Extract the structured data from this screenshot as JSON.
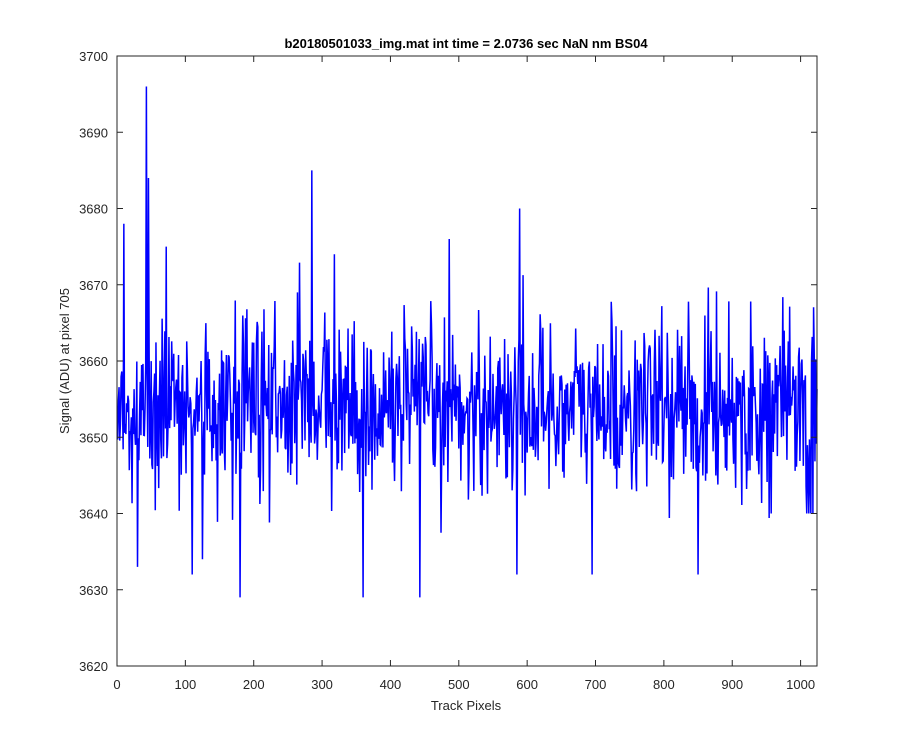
{
  "chart_data": {
    "type": "line",
    "title": "b20180501033_img.mat int time = 2.0736 sec  NaN nm BS04",
    "xlabel": "Track Pixels",
    "ylabel": "Signal (ADU) at pixel 705",
    "xlim": [
      0,
      1024
    ],
    "ylim": [
      3620,
      3700
    ],
    "xticks": [
      0,
      100,
      200,
      300,
      400,
      500,
      600,
      700,
      800,
      900,
      1000
    ],
    "yticks": [
      3620,
      3630,
      3640,
      3650,
      3660,
      3670,
      3680,
      3690,
      3700
    ],
    "grid": false,
    "legend": "none",
    "series": [
      {
        "color": "#0000ff",
        "x_start": 1,
        "x_step": 1,
        "count": 1024,
        "mean": 3654,
        "noise_sd": 5.5,
        "seed": 705,
        "peaks": [
          {
            "x": 10,
            "y": 3678
          },
          {
            "x": 30,
            "y": 3633
          },
          {
            "x": 43,
            "y": 3696
          },
          {
            "x": 46,
            "y": 3684
          },
          {
            "x": 72,
            "y": 3675
          },
          {
            "x": 110,
            "y": 3632
          },
          {
            "x": 125,
            "y": 3634
          },
          {
            "x": 180,
            "y": 3629
          },
          {
            "x": 264,
            "y": 3669
          },
          {
            "x": 285,
            "y": 3685
          },
          {
            "x": 318,
            "y": 3674
          },
          {
            "x": 360,
            "y": 3629
          },
          {
            "x": 443,
            "y": 3629
          },
          {
            "x": 486,
            "y": 3676
          },
          {
            "x": 585,
            "y": 3632
          },
          {
            "x": 589,
            "y": 3680
          },
          {
            "x": 695,
            "y": 3632
          },
          {
            "x": 850,
            "y": 3632
          },
          {
            "x": 1009,
            "y": 3640
          },
          {
            "x": 1012,
            "y": 3640
          },
          {
            "x": 1015,
            "y": 3640
          },
          {
            "x": 1018,
            "y": 3640
          }
        ]
      }
    ]
  }
}
